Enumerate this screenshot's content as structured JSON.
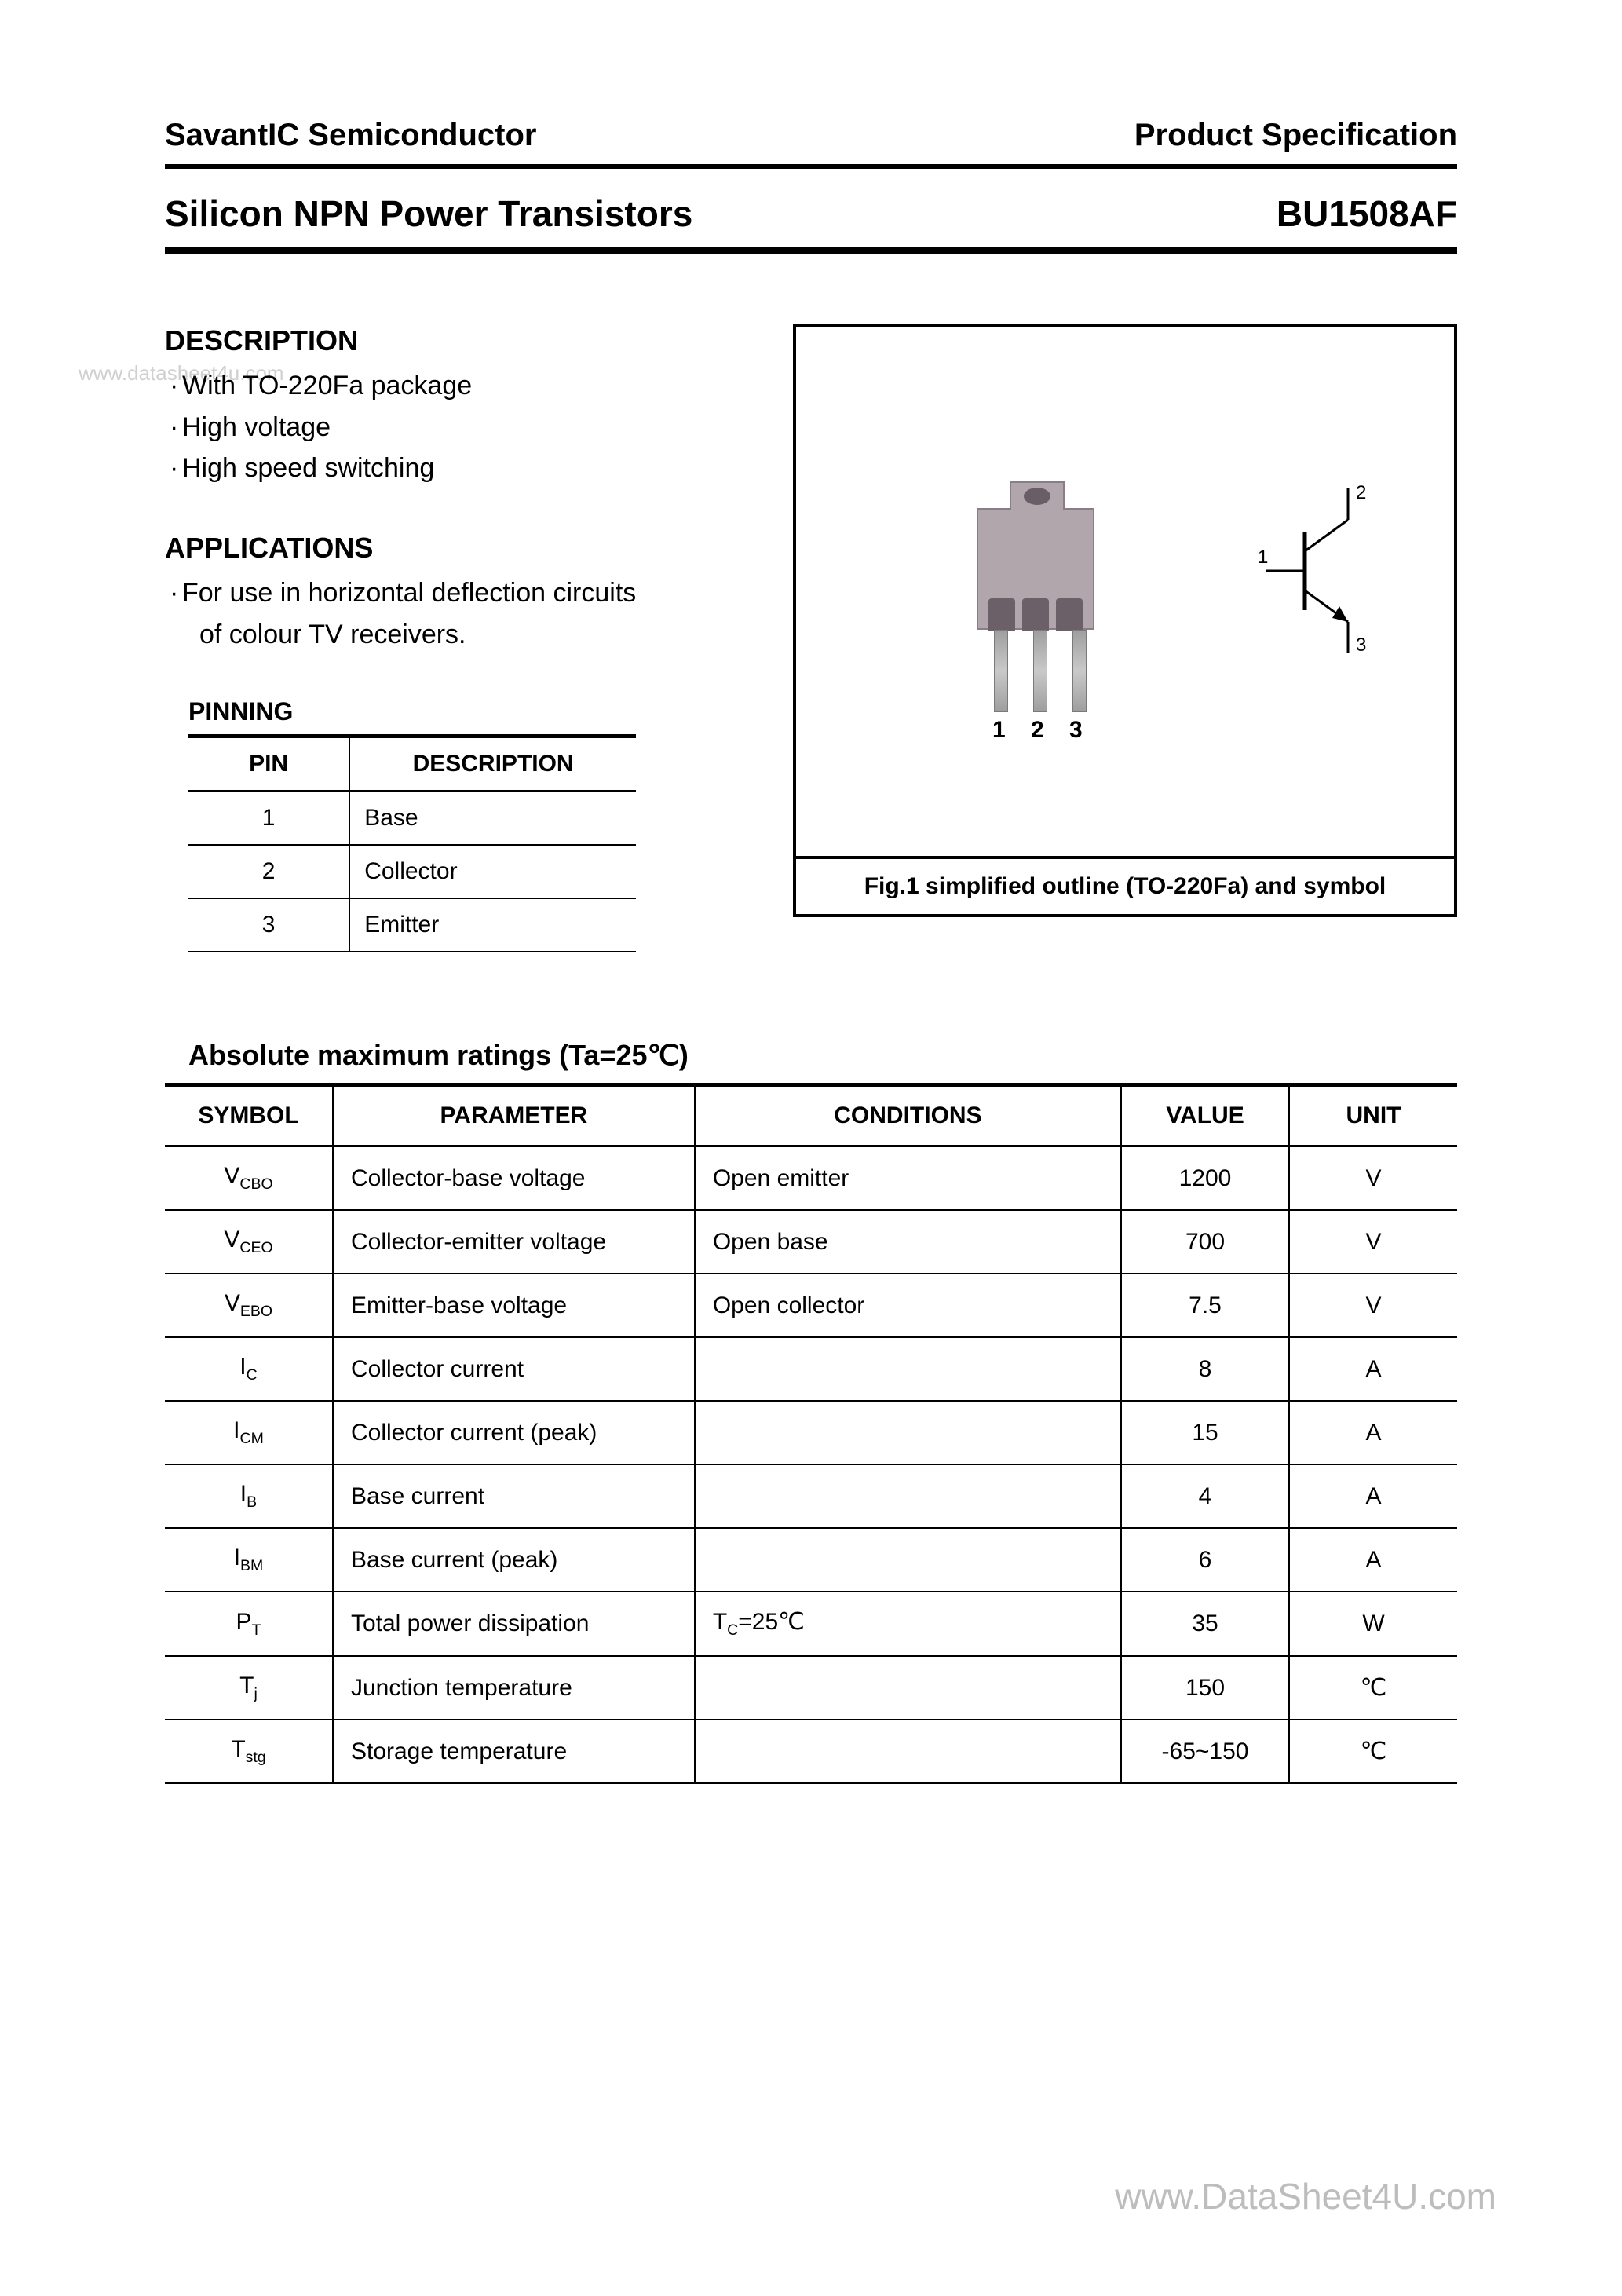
{
  "header": {
    "company": "SavantIC Semiconductor",
    "docType": "Product Specification"
  },
  "title": {
    "family": "Silicon NPN Power Transistors",
    "part": "BU1508AF"
  },
  "watermark": {
    "left": "www.datasheet4u.com",
    "right": "www.DataSheet4U.com"
  },
  "description": {
    "heading": "DESCRIPTION",
    "items": [
      "With TO-220Fa package",
      "High voltage",
      "High speed switching"
    ]
  },
  "applications": {
    "heading": "APPLICATIONS",
    "line1": "For use in horizontal deflection circuits",
    "line2": "of colour TV receivers."
  },
  "pinning": {
    "heading": "PINNING",
    "cols": [
      "PIN",
      "DESCRIPTION"
    ],
    "rows": [
      {
        "pin": "1",
        "desc": "Base"
      },
      {
        "pin": "2",
        "desc": "Collector"
      },
      {
        "pin": "3",
        "desc": "Emitter"
      }
    ]
  },
  "figure": {
    "caption": "Fig.1 simplified outline (TO-220Fa) and symbol",
    "pinLabels": "1 2 3",
    "symbolPins": {
      "base": "1",
      "collector": "2",
      "emitter": "3"
    }
  },
  "ratings": {
    "heading": "Absolute maximum ratings (Ta=25℃)",
    "cols": [
      "SYMBOL",
      "PARAMETER",
      "CONDITIONS",
      "VALUE",
      "UNIT"
    ],
    "rows": [
      {
        "sym": "V",
        "sub": "CBO",
        "param": "Collector-base voltage",
        "cond": "Open emitter",
        "value": "1200",
        "unit": "V"
      },
      {
        "sym": "V",
        "sub": "CEO",
        "param": "Collector-emitter voltage",
        "cond": "Open base",
        "value": "700",
        "unit": "V"
      },
      {
        "sym": "V",
        "sub": "EBO",
        "param": "Emitter-base voltage",
        "cond": "Open collector",
        "value": "7.5",
        "unit": "V"
      },
      {
        "sym": "I",
        "sub": "C",
        "param": "Collector current",
        "cond": "",
        "value": "8",
        "unit": "A"
      },
      {
        "sym": "I",
        "sub": "CM",
        "param": "Collector current (peak)",
        "cond": "",
        "value": "15",
        "unit": "A"
      },
      {
        "sym": "I",
        "sub": "B",
        "param": "Base current",
        "cond": "",
        "value": "4",
        "unit": "A"
      },
      {
        "sym": "I",
        "sub": "BM",
        "param": "Base current (peak)",
        "cond": "",
        "value": "6",
        "unit": "A"
      },
      {
        "sym": "P",
        "sub": "T",
        "param": "Total power dissipation",
        "cond_html": "T<sub>C</sub>=25℃",
        "value": "35",
        "unit": "W"
      },
      {
        "sym": "T",
        "sub": "j",
        "param": "Junction temperature",
        "cond": "",
        "value": "150",
        "unit": "℃"
      },
      {
        "sym": "T",
        "sub": "stg",
        "param": "Storage temperature",
        "cond": "",
        "value": "-65~150",
        "unit": "℃"
      }
    ]
  },
  "colors": {
    "text": "#000000",
    "background": "#ffffff",
    "packageBody": "#b2a6ad",
    "packageDark": "#6c6068",
    "watermark": "#bdbdbd"
  }
}
